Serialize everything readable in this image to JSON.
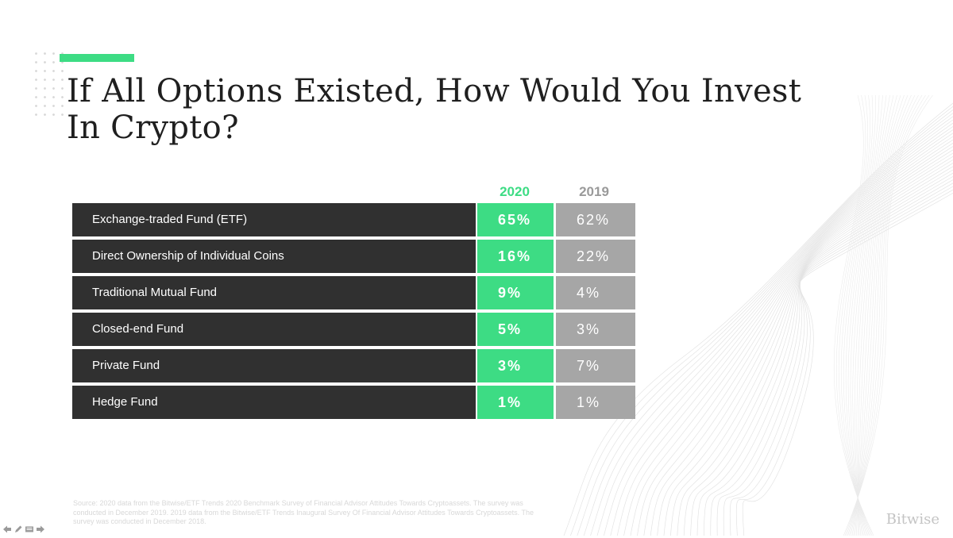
{
  "colors": {
    "accent": "#3ddc84",
    "dark_row": "#303030",
    "gray_cell": "#a6a6a6",
    "title": "#1f1f1f"
  },
  "title": "If All Options Existed, How Would You Invest In Crypto?",
  "brand": "Bitwise",
  "source": "Source: 2020 data from the Bitwise/ETF Trends 2020 Benchmark Survey of Financial Advisor Attitudes Towards Cryptoassets. The survey was conducted in December 2019. 2019 data from the Bitwise/ETF Trends Inaugural Survey Of Financial Advisor Attitudes Towards Cryptoassets. The survey was conducted in December 2018.",
  "nav_icons": [
    "arrow-left-icon",
    "pen-icon",
    "slides-icon",
    "arrow-right-icon"
  ],
  "chart_data": {
    "type": "table",
    "title": "If All Options Existed, How Would You Invest In Crypto?",
    "columns": [
      "2020",
      "2019"
    ],
    "rows": [
      {
        "label": "Exchange-traded Fund (ETF)",
        "v2020": "65%",
        "v2019": "62%"
      },
      {
        "label": "Direct Ownership of Individual Coins",
        "v2020": "16%",
        "v2019": "22%"
      },
      {
        "label": "Traditional Mutual Fund",
        "v2020": "9%",
        "v2019": "4%"
      },
      {
        "label": "Closed-end Fund",
        "v2020": "5%",
        "v2019": "3%"
      },
      {
        "label": "Private Fund",
        "v2020": "3%",
        "v2019": "7%"
      },
      {
        "label": "Hedge Fund",
        "v2020": "1%",
        "v2019": "1%"
      }
    ]
  }
}
